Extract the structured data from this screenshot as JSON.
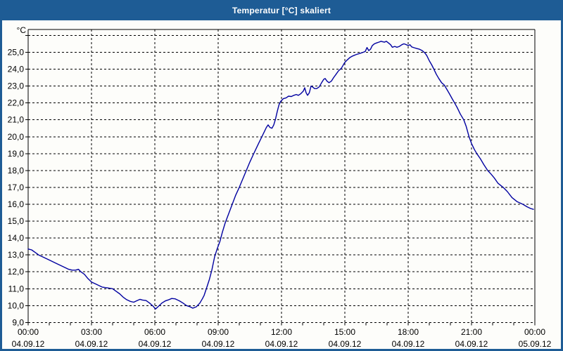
{
  "window": {
    "title": "Temperatur [°C] skaliert"
  },
  "colors": {
    "titlebar_bg": "#1e5c95",
    "title_text": "#ffffff",
    "window_bg": "#fdfdfa",
    "grid": "#000000",
    "series": "#0000a0"
  },
  "chart_data": {
    "type": "line",
    "title": "Temperatur [°C] skaliert",
    "y_unit_label": "°C",
    "xlabel": "",
    "ylabel": "",
    "grid": "dashed",
    "legend": "none",
    "ylim": [
      9,
      26.35
    ],
    "x_unit": "minutes_since_00:00_04.09.12",
    "xlim_minutes": [
      0,
      1440
    ],
    "minor_x_tick_every_minutes": 60,
    "yticks": [
      {
        "value": 25,
        "label": "25,0"
      },
      {
        "value": 24,
        "label": "24,0"
      },
      {
        "value": 23,
        "label": "23,0"
      },
      {
        "value": 22,
        "label": "22,0"
      },
      {
        "value": 21,
        "label": "21,0"
      },
      {
        "value": 20,
        "label": "20,0"
      },
      {
        "value": 19,
        "label": "19,0"
      },
      {
        "value": 18,
        "label": "18,0"
      },
      {
        "value": 17,
        "label": "17,0"
      },
      {
        "value": 16,
        "label": "16,0"
      },
      {
        "value": 15,
        "label": "15,0"
      },
      {
        "value": 14,
        "label": "14,0"
      },
      {
        "value": 13,
        "label": "13,0"
      },
      {
        "value": 12,
        "label": "12,0"
      },
      {
        "value": 11,
        "label": "11,0"
      },
      {
        "value": 10,
        "label": "10,0"
      },
      {
        "value": 9,
        "label": "9,0"
      }
    ],
    "ygrid_unlabeled_values": [
      26
    ],
    "xticks": [
      {
        "minutes": 0,
        "time": "00:00",
        "date": "04.09.12"
      },
      {
        "minutes": 180,
        "time": "03:00",
        "date": "04.09.12"
      },
      {
        "minutes": 360,
        "time": "06:00",
        "date": "04.09.12"
      },
      {
        "minutes": 540,
        "time": "09:00",
        "date": "04.09.12"
      },
      {
        "minutes": 720,
        "time": "12:00",
        "date": "04.09.12"
      },
      {
        "minutes": 900,
        "time": "15:00",
        "date": "04.09.12"
      },
      {
        "minutes": 1080,
        "time": "18:00",
        "date": "04.09.12"
      },
      {
        "minutes": 1260,
        "time": "21:00",
        "date": "04.09.12"
      },
      {
        "minutes": 1440,
        "time": "00:00",
        "date": "05.09.12"
      }
    ],
    "series": [
      {
        "name": "Temperatur",
        "points": [
          [
            0,
            13.35
          ],
          [
            10,
            13.3
          ],
          [
            20,
            13.15
          ],
          [
            30,
            13.0
          ],
          [
            40,
            12.9
          ],
          [
            60,
            12.7
          ],
          [
            80,
            12.5
          ],
          [
            100,
            12.3
          ],
          [
            115,
            12.15
          ],
          [
            125,
            12.1
          ],
          [
            135,
            12.1
          ],
          [
            143,
            12.15
          ],
          [
            150,
            12.0
          ],
          [
            160,
            11.85
          ],
          [
            170,
            11.6
          ],
          [
            180,
            11.4
          ],
          [
            195,
            11.25
          ],
          [
            210,
            11.1
          ],
          [
            225,
            11.05
          ],
          [
            240,
            11.0
          ],
          [
            250,
            10.85
          ],
          [
            260,
            10.7
          ],
          [
            270,
            10.5
          ],
          [
            280,
            10.35
          ],
          [
            290,
            10.25
          ],
          [
            300,
            10.2
          ],
          [
            310,
            10.3
          ],
          [
            318,
            10.37
          ],
          [
            325,
            10.33
          ],
          [
            335,
            10.3
          ],
          [
            345,
            10.15
          ],
          [
            355,
            9.97
          ],
          [
            362,
            9.8
          ],
          [
            370,
            9.95
          ],
          [
            380,
            10.15
          ],
          [
            390,
            10.28
          ],
          [
            400,
            10.35
          ],
          [
            408,
            10.42
          ],
          [
            418,
            10.4
          ],
          [
            430,
            10.28
          ],
          [
            440,
            10.15
          ],
          [
            450,
            10.0
          ],
          [
            460,
            9.93
          ],
          [
            468,
            9.85
          ],
          [
            478,
            9.93
          ],
          [
            488,
            10.15
          ],
          [
            495,
            10.4
          ],
          [
            500,
            10.6
          ],
          [
            508,
            11.1
          ],
          [
            515,
            11.55
          ],
          [
            522,
            12.1
          ],
          [
            530,
            12.9
          ],
          [
            537,
            13.35
          ],
          [
            545,
            13.8
          ],
          [
            552,
            14.35
          ],
          [
            560,
            14.9
          ],
          [
            570,
            15.45
          ],
          [
            580,
            16.0
          ],
          [
            590,
            16.55
          ],
          [
            600,
            17.0
          ],
          [
            610,
            17.5
          ],
          [
            620,
            18.0
          ],
          [
            630,
            18.5
          ],
          [
            640,
            18.95
          ],
          [
            648,
            19.3
          ],
          [
            656,
            19.65
          ],
          [
            663,
            19.95
          ],
          [
            670,
            20.25
          ],
          [
            677,
            20.55
          ],
          [
            682,
            20.7
          ],
          [
            687,
            20.55
          ],
          [
            693,
            20.5
          ],
          [
            698,
            20.7
          ],
          [
            703,
            21.05
          ],
          [
            708,
            21.5
          ],
          [
            713,
            21.9
          ],
          [
            718,
            22.1
          ],
          [
            725,
            22.25
          ],
          [
            733,
            22.3
          ],
          [
            740,
            22.4
          ],
          [
            748,
            22.38
          ],
          [
            755,
            22.45
          ],
          [
            762,
            22.5
          ],
          [
            768,
            22.45
          ],
          [
            775,
            22.55
          ],
          [
            782,
            22.7
          ],
          [
            786,
            22.9
          ],
          [
            790,
            22.6
          ],
          [
            794,
            22.45
          ],
          [
            799,
            22.6
          ],
          [
            804,
            23.0
          ],
          [
            808,
            22.95
          ],
          [
            814,
            22.85
          ],
          [
            820,
            22.85
          ],
          [
            827,
            22.95
          ],
          [
            834,
            23.2
          ],
          [
            840,
            23.4
          ],
          [
            844,
            23.45
          ],
          [
            849,
            23.3
          ],
          [
            855,
            23.2
          ],
          [
            862,
            23.3
          ],
          [
            868,
            23.5
          ],
          [
            875,
            23.7
          ],
          [
            882,
            23.9
          ],
          [
            890,
            24.05
          ],
          [
            897,
            24.3
          ],
          [
            900,
            24.4
          ],
          [
            907,
            24.55
          ],
          [
            915,
            24.7
          ],
          [
            922,
            24.78
          ],
          [
            930,
            24.85
          ],
          [
            937,
            24.9
          ],
          [
            945,
            24.95
          ],
          [
            952,
            25.0
          ],
          [
            958,
            25.05
          ],
          [
            963,
            25.28
          ],
          [
            968,
            25.1
          ],
          [
            973,
            25.18
          ],
          [
            978,
            25.4
          ],
          [
            984,
            25.5
          ],
          [
            990,
            25.55
          ],
          [
            997,
            25.6
          ],
          [
            1003,
            25.65
          ],
          [
            1008,
            25.62
          ],
          [
            1013,
            25.6
          ],
          [
            1018,
            25.65
          ],
          [
            1024,
            25.55
          ],
          [
            1030,
            25.45
          ],
          [
            1035,
            25.3
          ],
          [
            1042,
            25.35
          ],
          [
            1048,
            25.3
          ],
          [
            1055,
            25.35
          ],
          [
            1062,
            25.45
          ],
          [
            1068,
            25.5
          ],
          [
            1075,
            25.45
          ],
          [
            1080,
            25.4
          ],
          [
            1085,
            25.45
          ],
          [
            1090,
            25.32
          ],
          [
            1097,
            25.27
          ],
          [
            1105,
            25.22
          ],
          [
            1112,
            25.18
          ],
          [
            1120,
            25.1
          ],
          [
            1128,
            24.95
          ],
          [
            1133,
            24.8
          ],
          [
            1140,
            24.5
          ],
          [
            1147,
            24.25
          ],
          [
            1153,
            24.0
          ],
          [
            1160,
            23.7
          ],
          [
            1167,
            23.45
          ],
          [
            1175,
            23.2
          ],
          [
            1183,
            23.05
          ],
          [
            1190,
            22.8
          ],
          [
            1197,
            22.55
          ],
          [
            1205,
            22.25
          ],
          [
            1212,
            22.0
          ],
          [
            1220,
            21.7
          ],
          [
            1228,
            21.35
          ],
          [
            1238,
            21.0
          ],
          [
            1245,
            20.6
          ],
          [
            1253,
            20.0
          ],
          [
            1260,
            19.6
          ],
          [
            1268,
            19.25
          ],
          [
            1275,
            19.0
          ],
          [
            1285,
            18.7
          ],
          [
            1295,
            18.35
          ],
          [
            1306,
            18.0
          ],
          [
            1315,
            17.8
          ],
          [
            1325,
            17.55
          ],
          [
            1335,
            17.25
          ],
          [
            1350,
            17.0
          ],
          [
            1362,
            16.75
          ],
          [
            1375,
            16.4
          ],
          [
            1390,
            16.15
          ],
          [
            1406,
            16.0
          ],
          [
            1418,
            15.85
          ],
          [
            1428,
            15.75
          ],
          [
            1436,
            15.7
          ]
        ]
      }
    ]
  }
}
